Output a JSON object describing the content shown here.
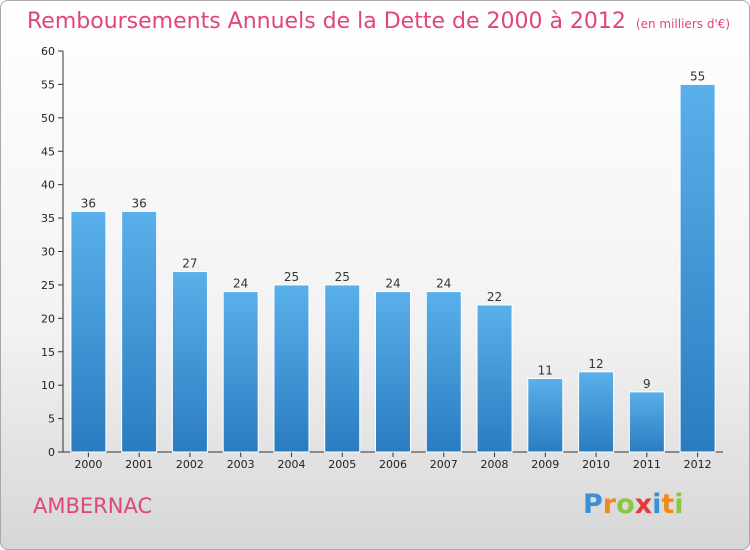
{
  "header": {
    "title": "Remboursements Annuels de la Dette de 2000 à 2012",
    "unit": "(en milliers d'€)"
  },
  "footer": {
    "commune": "AMBERNAC",
    "logo_letters": [
      {
        "ch": "P",
        "color": "#3a8fd6"
      },
      {
        "ch": "r",
        "color": "#f08a1c"
      },
      {
        "ch": "o",
        "color": "#8cc63f"
      },
      {
        "ch": "x",
        "color": "#e33b3b"
      },
      {
        "ch": "i",
        "color": "#3a8fd6"
      },
      {
        "ch": "t",
        "color": "#f08a1c"
      },
      {
        "ch": "i",
        "color": "#8cc63f"
      }
    ]
  },
  "colors": {
    "bar_top": "#5ab0ea",
    "bar_bottom": "#2a7cc0",
    "title": "#e0457b"
  },
  "chart_data": {
    "type": "bar",
    "title": "Remboursements Annuels de la Dette de 2000 à 2012",
    "ylabel": "",
    "xlabel": "",
    "categories": [
      "2000",
      "2001",
      "2002",
      "2003",
      "2004",
      "2005",
      "2006",
      "2007",
      "2008",
      "2009",
      "2010",
      "2011",
      "2012"
    ],
    "values": [
      36,
      36,
      27,
      24,
      25,
      25,
      24,
      24,
      22,
      11,
      12,
      9,
      55
    ],
    "ylim": [
      0,
      60
    ],
    "yticks": [
      0,
      5,
      10,
      15,
      20,
      25,
      30,
      35,
      40,
      45,
      50,
      55,
      60
    ],
    "grid": false
  }
}
